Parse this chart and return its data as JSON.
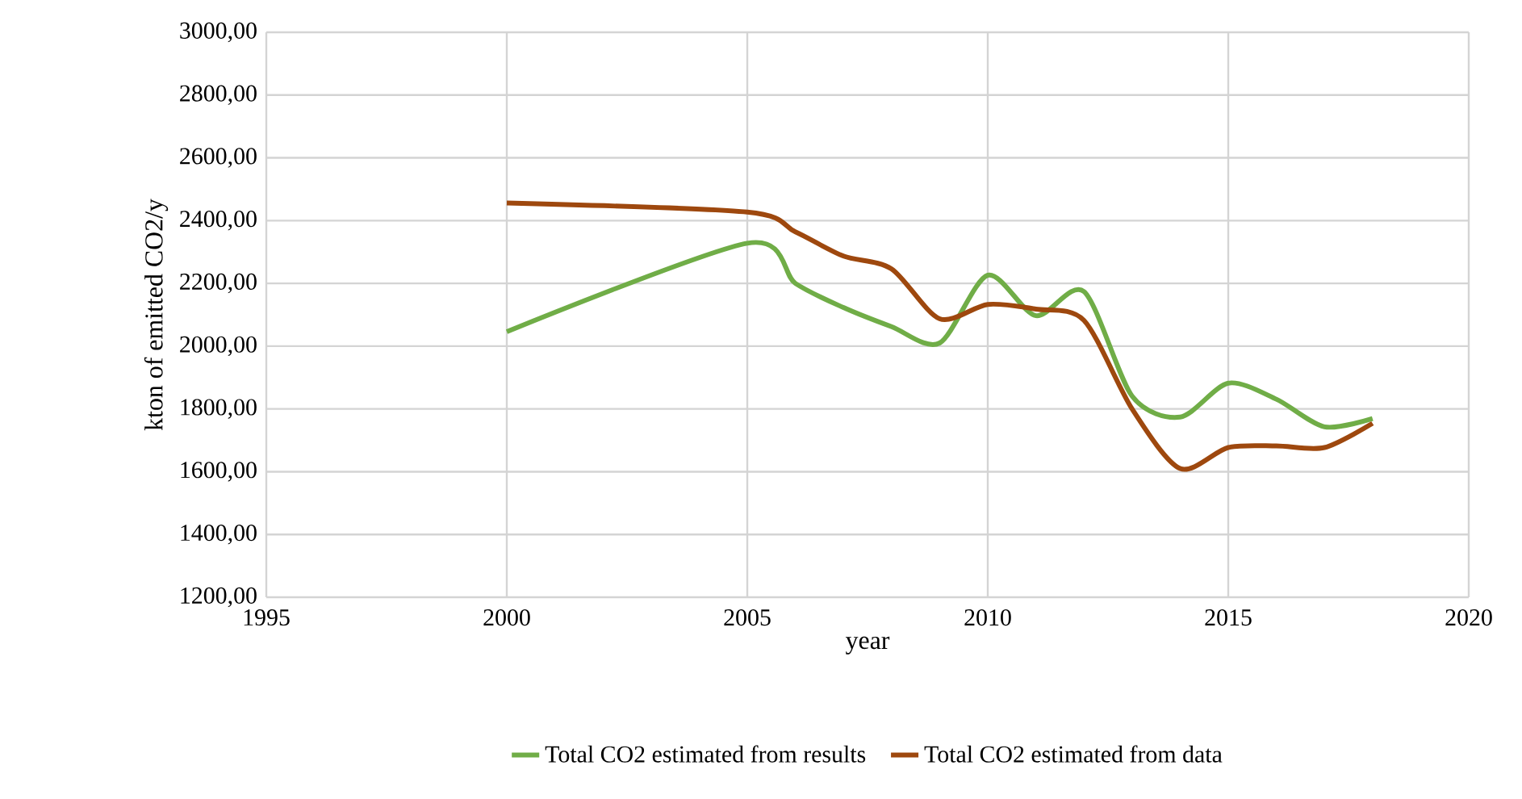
{
  "chart_data": {
    "type": "line",
    "xlabel": "year",
    "ylabel": "kton of emitted CO2/y",
    "xlim": [
      1995,
      2020
    ],
    "xticks": [
      1995,
      2000,
      2005,
      2010,
      2015,
      2020
    ],
    "ylim": [
      1200,
      3000
    ],
    "yticks": [
      {
        "value": 1200,
        "label": "1200,00"
      },
      {
        "value": 1400,
        "label": "1400,00"
      },
      {
        "value": 1600,
        "label": "1600,00"
      },
      {
        "value": 1800,
        "label": "1800,00"
      },
      {
        "value": 2000,
        "label": "2000,00"
      },
      {
        "value": 2200,
        "label": "2200,00"
      },
      {
        "value": 2400,
        "label": "2400,00"
      },
      {
        "value": 2600,
        "label": "2600,00"
      },
      {
        "value": 2800,
        "label": "2800,00"
      },
      {
        "value": 3000,
        "label": "3000,00"
      }
    ],
    "grid": true,
    "legend": "bottom",
    "marker": "none",
    "line_style": "solid",
    "series": [
      {
        "name": "Total CO2 estimated from results",
        "color": "#70ad47",
        "x": [
          2000,
          2005,
          2006,
          2007,
          2008,
          2009,
          2010,
          2011,
          2012,
          2013,
          2014,
          2015,
          2016,
          2017,
          2018
        ],
        "values": [
          2046,
          2328,
          2200,
          2123,
          2062,
          2010,
          2226,
          2097,
          2174,
          1841,
          1774,
          1882,
          1831,
          1743,
          1769
        ]
      },
      {
        "name": "Total CO2 estimated from data",
        "color": "#9e480e",
        "x": [
          2000,
          2005,
          2006,
          2007,
          2008,
          2009,
          2010,
          2011,
          2012,
          2013,
          2014,
          2015,
          2016,
          2017,
          2018
        ],
        "values": [
          2456,
          2427,
          2364,
          2287,
          2246,
          2087,
          2133,
          2118,
          2082,
          1800,
          1610,
          1677,
          1682,
          1677,
          1754
        ]
      }
    ]
  }
}
